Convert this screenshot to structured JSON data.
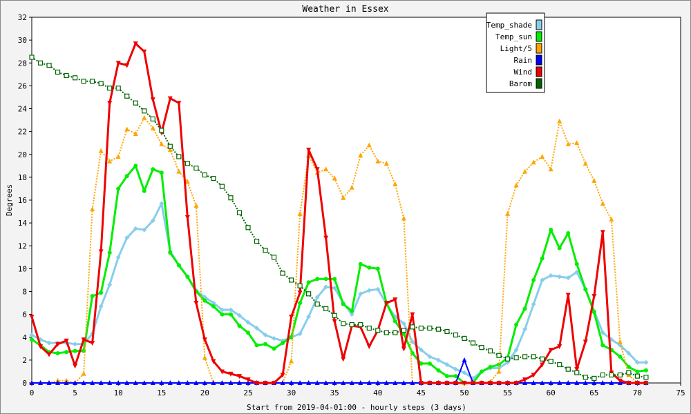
{
  "chart_data": {
    "type": "line",
    "title": "Weather in Essex",
    "xlabel": "Start from 2019-04-01:00 - hourly steps (3 days)",
    "ylabel": "Degrees",
    "xlim": [
      0,
      75
    ],
    "ylim": [
      0,
      32
    ],
    "xticks": [
      0,
      5,
      10,
      15,
      20,
      25,
      30,
      35,
      40,
      45,
      50,
      55,
      60,
      65,
      70,
      75
    ],
    "yticks": [
      0,
      2,
      4,
      6,
      8,
      10,
      12,
      14,
      16,
      18,
      20,
      22,
      24,
      26,
      28,
      30,
      32
    ],
    "grid": false,
    "legend_position": "top-right",
    "x": [
      0,
      1,
      2,
      3,
      4,
      5,
      6,
      7,
      8,
      9,
      10,
      11,
      12,
      13,
      14,
      15,
      16,
      17,
      18,
      19,
      20,
      21,
      22,
      23,
      24,
      25,
      26,
      27,
      28,
      29,
      30,
      31,
      32,
      33,
      34,
      35,
      36,
      37,
      38,
      39,
      40,
      41,
      42,
      43,
      44,
      45,
      46,
      47,
      48,
      49,
      50,
      51,
      52,
      53,
      54,
      55,
      56,
      57,
      58,
      59,
      60,
      61,
      62,
      63,
      64,
      65,
      66,
      67,
      68,
      69,
      70,
      71
    ],
    "series": [
      {
        "name": "Temp_shade",
        "color": "#87ceeb",
        "marker": "diamond",
        "line": "solid",
        "width": 3,
        "values": [
          4.2,
          3.8,
          3.5,
          3.5,
          3.5,
          3.4,
          3.4,
          4.3,
          6.7,
          8.6,
          11.0,
          12.7,
          13.5,
          13.4,
          14.2,
          15.7,
          11.5,
          10.3,
          9.3,
          8.1,
          7.5,
          7.0,
          6.4,
          6.4,
          5.9,
          5.3,
          4.8,
          4.2,
          3.9,
          3.7,
          4.0,
          4.3,
          5.8,
          7.5,
          8.4,
          8.3,
          7.0,
          6.0,
          7.8,
          8.1,
          8.2,
          6.9,
          5.8,
          5.2,
          3.6,
          2.9,
          2.3,
          2.0,
          1.6,
          1.2,
          0.9,
          0.4,
          1.0,
          1.3,
          1.3,
          1.8,
          2.9,
          4.7,
          6.9,
          9.0,
          9.4,
          9.3,
          9.2,
          9.7,
          8.2,
          6.3,
          4.4,
          3.8,
          3.3,
          2.6,
          1.8,
          1.8
        ]
      },
      {
        "name": "Temp_sun",
        "color": "#00ee00",
        "marker": "circle",
        "line": "solid",
        "width": 3,
        "values": [
          3.8,
          3.3,
          2.7,
          2.6,
          2.7,
          2.8,
          2.8,
          7.6,
          7.9,
          11.4,
          17.0,
          18.1,
          19.0,
          16.8,
          18.7,
          18.4,
          11.4,
          10.3,
          9.3,
          8.0,
          7.2,
          6.7,
          6.0,
          6.0,
          5.0,
          4.4,
          3.3,
          3.4,
          3.0,
          3.5,
          4.0,
          7.0,
          8.8,
          9.1,
          9.1,
          9.1,
          6.9,
          6.3,
          10.4,
          10.1,
          10.0,
          7.0,
          5.4,
          4.3,
          2.6,
          1.7,
          1.7,
          1.1,
          0.6,
          0.6,
          0.0,
          0.0,
          1.0,
          1.4,
          1.6,
          2.2,
          5.1,
          6.5,
          9.0,
          10.9,
          13.4,
          11.8,
          13.1,
          10.4,
          8.2,
          6.2,
          3.3,
          2.9,
          2.3,
          1.4,
          1.0,
          1.1
        ]
      },
      {
        "name": "Light/5",
        "color": "#ffa500",
        "marker": "triangle-up",
        "line": "dotted",
        "width": 2,
        "values": [
          0.0,
          0.0,
          0.0,
          0.2,
          0.2,
          0.0,
          0.8,
          15.2,
          20.3,
          19.4,
          19.8,
          22.2,
          21.8,
          23.2,
          22.3,
          20.9,
          20.4,
          18.5,
          17.6,
          15.5,
          2.2,
          0.0,
          0.0,
          0.0,
          0.0,
          0.0,
          0.0,
          0.0,
          0.0,
          0.0,
          1.9,
          14.8,
          19.9,
          18.4,
          18.7,
          17.9,
          16.2,
          17.1,
          19.9,
          20.8,
          19.4,
          19.2,
          17.4,
          14.4,
          0.0,
          0.0,
          0.0,
          0.0,
          0.0,
          0.0,
          0.0,
          0.0,
          0.0,
          0.1,
          1.0,
          14.8,
          17.3,
          18.5,
          19.3,
          19.8,
          18.7,
          22.9,
          20.9,
          21.0,
          19.2,
          17.7,
          15.7,
          14.3,
          3.6,
          0.7,
          0.0,
          0.0
        ]
      },
      {
        "name": "Rain",
        "color": "#0000ff",
        "marker": "triangle-up",
        "line": "solid",
        "width": 2,
        "values": [
          0,
          0,
          0,
          0,
          0,
          0,
          0,
          0,
          0,
          0,
          0,
          0,
          0,
          0,
          0,
          0,
          0,
          0,
          0,
          0,
          0,
          0,
          0,
          0,
          0,
          0,
          0,
          0,
          0,
          0,
          0,
          0,
          0,
          0,
          0,
          0,
          0,
          0,
          0,
          0,
          0,
          0,
          0,
          0,
          0,
          0,
          0,
          0,
          0,
          0,
          2.0,
          0,
          0,
          0,
          0,
          0,
          0,
          0,
          0,
          0,
          0,
          0,
          0,
          0,
          0,
          0,
          0,
          0,
          0,
          0,
          0,
          0
        ]
      },
      {
        "name": "Wind",
        "color": "#ee0000",
        "marker": "triangle-down",
        "line": "solid",
        "width": 3,
        "values": [
          5.8,
          3.2,
          2.5,
          3.4,
          3.7,
          1.5,
          3.8,
          3.5,
          11.5,
          24.5,
          28.0,
          27.8,
          29.7,
          29.0,
          24.8,
          21.9,
          24.9,
          24.5,
          14.5,
          7.0,
          3.8,
          1.9,
          1.0,
          0.8,
          0.6,
          0.3,
          0.0,
          0.0,
          0.0,
          0.7,
          5.8,
          7.9,
          20.4,
          18.7,
          12.7,
          5.4,
          2.1,
          5.0,
          4.9,
          3.2,
          4.6,
          7.0,
          7.3,
          3.0,
          6.0,
          0.0,
          0.0,
          0.0,
          0.0,
          0.0,
          0.0,
          0.0,
          0.0,
          0.0,
          0.0,
          0.0,
          0.0,
          0.3,
          0.7,
          1.6,
          2.9,
          3.2,
          7.7,
          1.2,
          3.6,
          7.6,
          13.2,
          0.9,
          0.2,
          0.0,
          0.0,
          0.0
        ]
      },
      {
        "name": "Barom",
        "color": "#006400",
        "marker": "square-open",
        "line": "dotted",
        "width": 2,
        "values": [
          28.5,
          28.0,
          27.8,
          27.2,
          26.9,
          26.7,
          26.4,
          26.4,
          26.2,
          25.8,
          25.8,
          25.1,
          24.5,
          23.8,
          23.1,
          22.1,
          20.7,
          19.8,
          19.2,
          18.8,
          18.2,
          17.9,
          17.2,
          16.2,
          14.9,
          13.6,
          12.4,
          11.6,
          11.0,
          9.6,
          9.0,
          8.5,
          7.8,
          6.9,
          6.5,
          5.9,
          5.2,
          5.1,
          5.1,
          4.8,
          4.6,
          4.4,
          4.4,
          4.6,
          4.9,
          4.8,
          4.8,
          4.7,
          4.5,
          4.2,
          3.9,
          3.5,
          3.1,
          2.8,
          2.4,
          2.1,
          2.2,
          2.3,
          2.3,
          2.1,
          1.9,
          1.6,
          1.2,
          0.9,
          0.5,
          0.4,
          0.7,
          0.7,
          0.7,
          0.9,
          0.6,
          0.5
        ]
      }
    ]
  }
}
